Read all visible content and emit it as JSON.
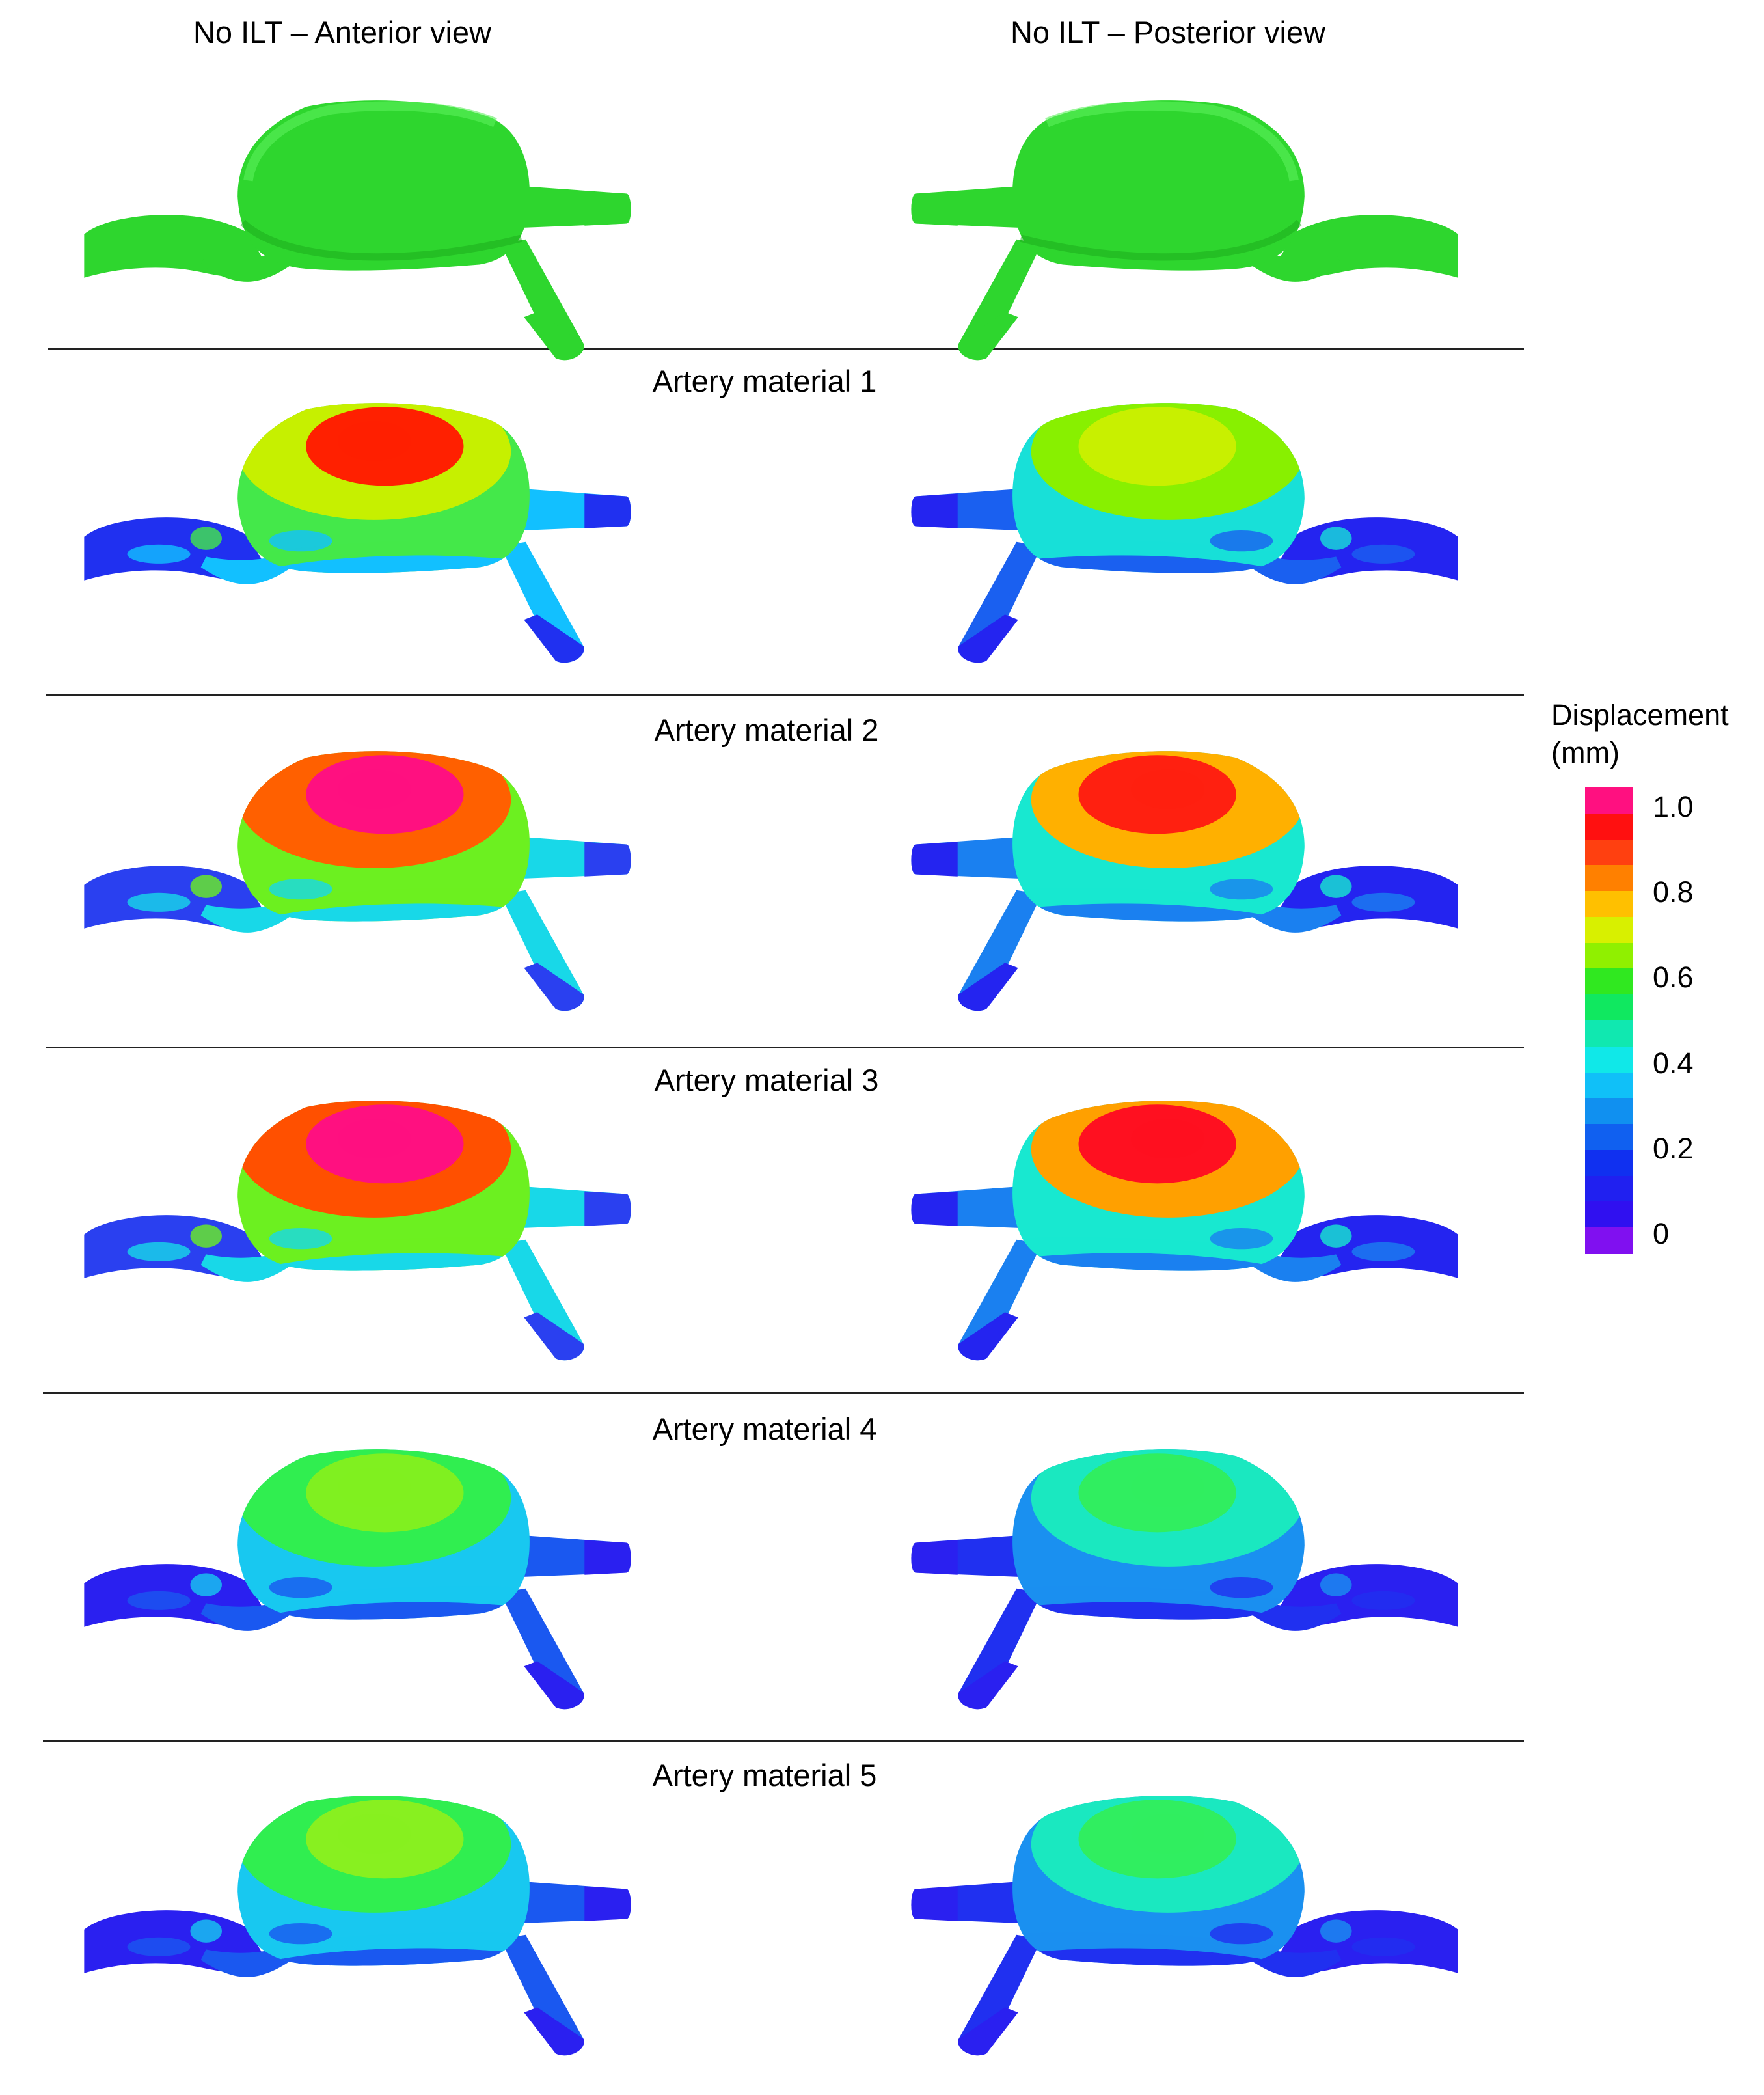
{
  "panel_titles": {
    "anterior": "No ILT – Anterior view",
    "posterior": "No ILT – Posterior view"
  },
  "rows": [
    {
      "label": "",
      "anterior": {
        "main": "#2ed62e",
        "top": "#2ed62e",
        "hot": "#2ed62e",
        "low": "#2ed62e",
        "vessel": "#2ed62e",
        "mode": "solid"
      },
      "posterior": {
        "main": "#2ed62e",
        "top": "#2ed62e",
        "hot": "#2ed62e",
        "low": "#2ed62e",
        "vessel": "#2ed62e",
        "mode": "solid"
      }
    },
    {
      "label": "Artery material 1",
      "anterior": {
        "main": "#44e84a",
        "top": "#c6f000",
        "hot": "#ff2000",
        "low": "#12c0ff",
        "vessel": "#2030f0",
        "mode": "contour"
      },
      "posterior": {
        "main": "#18e0d8",
        "top": "#88f000",
        "hot": "#c8f000",
        "low": "#1a60f0",
        "vessel": "#2424f0",
        "mode": "contour"
      }
    },
    {
      "label": "Artery material 2",
      "anterior": {
        "main": "#6cf020",
        "top": "#ff6000",
        "hot": "#ff1080",
        "low": "#18d8e8",
        "vessel": "#2a40f0",
        "mode": "contour"
      },
      "posterior": {
        "main": "#18e8d0",
        "top": "#ffb000",
        "hot": "#ff2010",
        "low": "#1a80f0",
        "vessel": "#2424f0",
        "mode": "contour"
      }
    },
    {
      "label": "Artery material 3",
      "anterior": {
        "main": "#6cf020",
        "top": "#ff5000",
        "hot": "#ff1080",
        "low": "#18d8e8",
        "vessel": "#2a40f0",
        "mode": "contour"
      },
      "posterior": {
        "main": "#18e8d0",
        "top": "#ffa000",
        "hot": "#ff1020",
        "low": "#1a80f0",
        "vessel": "#2424f0",
        "mode": "contour"
      }
    },
    {
      "label": "Artery material 4",
      "anterior": {
        "main": "#18c8f0",
        "top": "#30ee50",
        "hot": "#80f020",
        "low": "#1a58f0",
        "vessel": "#2a20f0",
        "mode": "contour"
      },
      "posterior": {
        "main": "#1a90f0",
        "top": "#1ae8c0",
        "hot": "#30ee60",
        "low": "#2030f0",
        "vessel": "#2a20f0",
        "mode": "contour"
      }
    },
    {
      "label": "Artery material 5",
      "anterior": {
        "main": "#18c8f0",
        "top": "#30ee50",
        "hot": "#88f020",
        "low": "#1a58f0",
        "vessel": "#2a20f0",
        "mode": "contour"
      },
      "posterior": {
        "main": "#1a90f0",
        "top": "#1ae8c0",
        "hot": "#30ee60",
        "low": "#2030f0",
        "vessel": "#2a20f0",
        "mode": "contour"
      }
    }
  ],
  "legend": {
    "title_line1": "Displacement",
    "title_line2": "(mm)",
    "ticks": [
      {
        "label": "1.0",
        "value": 1.0
      },
      {
        "label": "0.8",
        "value": 0.8
      },
      {
        "label": "0.6",
        "value": 0.6
      },
      {
        "label": "0.4",
        "value": 0.4
      },
      {
        "label": "0.2",
        "value": 0.2
      },
      {
        "label": "0",
        "value": 0
      }
    ],
    "colors_top_to_bottom": [
      "#ff1080",
      "#ff1010",
      "#ff4010",
      "#ff8000",
      "#ffc000",
      "#d8f000",
      "#90f000",
      "#30e820",
      "#10e860",
      "#10e8b0",
      "#10e8e8",
      "#10c0f8",
      "#1090f0",
      "#1060f0",
      "#1030f0",
      "#2020f0",
      "#3010f0",
      "#8010f0"
    ],
    "range": [
      0,
      1.0
    ]
  }
}
